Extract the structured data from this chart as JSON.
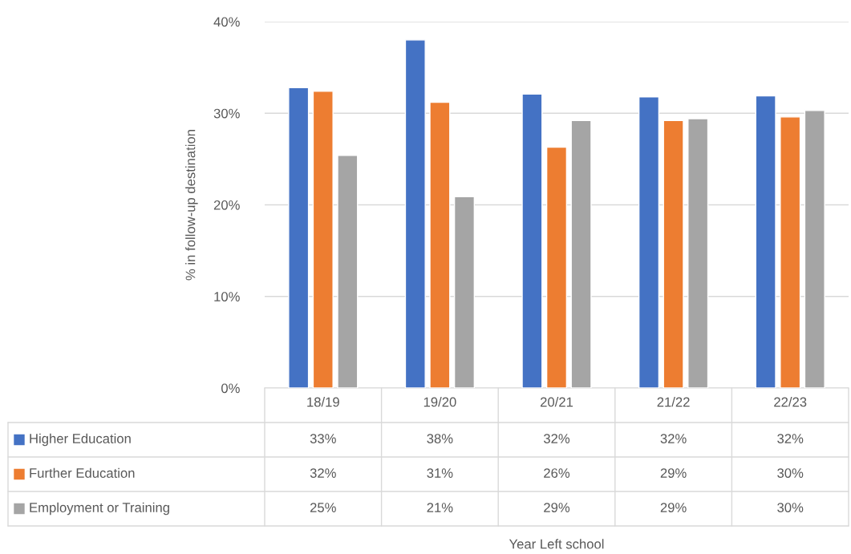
{
  "chart_data": {
    "type": "bar",
    "categories": [
      "18/19",
      "19/20",
      "20/21",
      "21/22",
      "22/23"
    ],
    "series": [
      {
        "name": "Higher Education",
        "color": "#4472c4",
        "values": [
          32.8,
          38.0,
          32.1,
          31.8,
          31.9
        ],
        "value_labels": [
          "33%",
          "38%",
          "32%",
          "32%",
          "32%"
        ]
      },
      {
        "name": "Further Education",
        "color": "#ed7d31",
        "values": [
          32.4,
          31.2,
          26.3,
          29.2,
          29.6
        ],
        "value_labels": [
          "32%",
          "31%",
          "26%",
          "29%",
          "30%"
        ]
      },
      {
        "name": "Employment or Training",
        "color": "#a5a5a5",
        "values": [
          25.4,
          20.9,
          29.2,
          29.4,
          30.3
        ],
        "value_labels": [
          "25%",
          "21%",
          "29%",
          "29%",
          "30%"
        ]
      }
    ],
    "annotations": [
      "Year Left school"
    ],
    "ylabel": "% in follow-up destination",
    "ylim": [
      0,
      40
    ],
    "yticks": [
      {
        "value": 0,
        "label": "0%"
      },
      {
        "value": 10,
        "label": "10%"
      },
      {
        "value": 20,
        "label": "20%"
      },
      {
        "value": 30,
        "label": "30%"
      },
      {
        "value": 40,
        "label": "40%"
      }
    ],
    "grid": "y",
    "legend": "bottom"
  }
}
